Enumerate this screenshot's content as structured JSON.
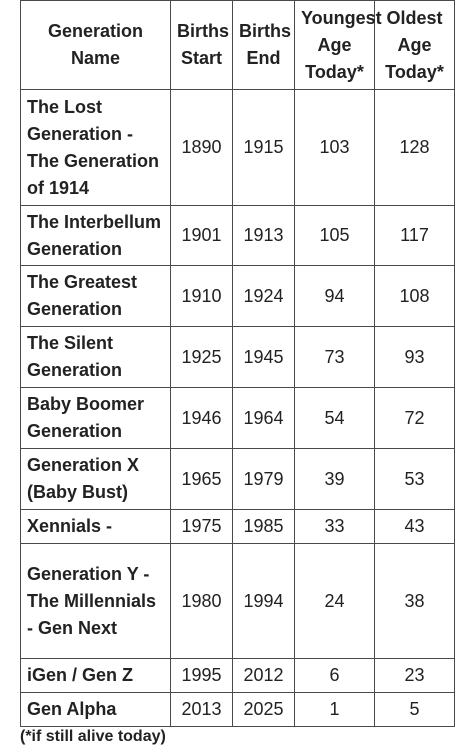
{
  "table": {
    "headers": {
      "name": "Generation Name",
      "start": "Births Start",
      "end": "Births End",
      "youngest": "Youngest Age Today*",
      "oldest": "Oldest Age Today*"
    },
    "rows": [
      {
        "name": "The Lost Generation - The Generation of 1914",
        "start": "1890",
        "end": "1915",
        "youngest": "103",
        "oldest": "128"
      },
      {
        "name": "The Interbellum Generation",
        "start": "1901",
        "end": "1913",
        "youngest": "105",
        "oldest": "117"
      },
      {
        "name": "The Greatest Generation",
        "start": "1910",
        "end": "1924",
        "youngest": "94",
        "oldest": "108"
      },
      {
        "name": "The Silent Generation",
        "start": "1925",
        "end": "1945",
        "youngest": "73",
        "oldest": "93"
      },
      {
        "name": "Baby Boomer Generation",
        "start": "1946",
        "end": "1964",
        "youngest": "54",
        "oldest": "72"
      },
      {
        "name": "Generation X (Baby Bust)",
        "start": "1965",
        "end": "1979",
        "youngest": "39",
        "oldest": "53"
      },
      {
        "name": "Xennials -",
        "start": "1975",
        "end": "1985",
        "youngest": "33",
        "oldest": "43"
      },
      {
        "name": "Generation Y - The Millennials - Gen Next",
        "start": "1980",
        "end": "1994",
        "youngest": "24",
        "oldest": "38"
      },
      {
        "name": "iGen / Gen Z",
        "start": "1995",
        "end": "2012",
        "youngest": "6",
        "oldest": "23"
      },
      {
        "name": "Gen Alpha",
        "start": "2013",
        "end": "2025",
        "youngest": "1",
        "oldest": "5"
      }
    ]
  },
  "footnote": "(*if still alive today)"
}
